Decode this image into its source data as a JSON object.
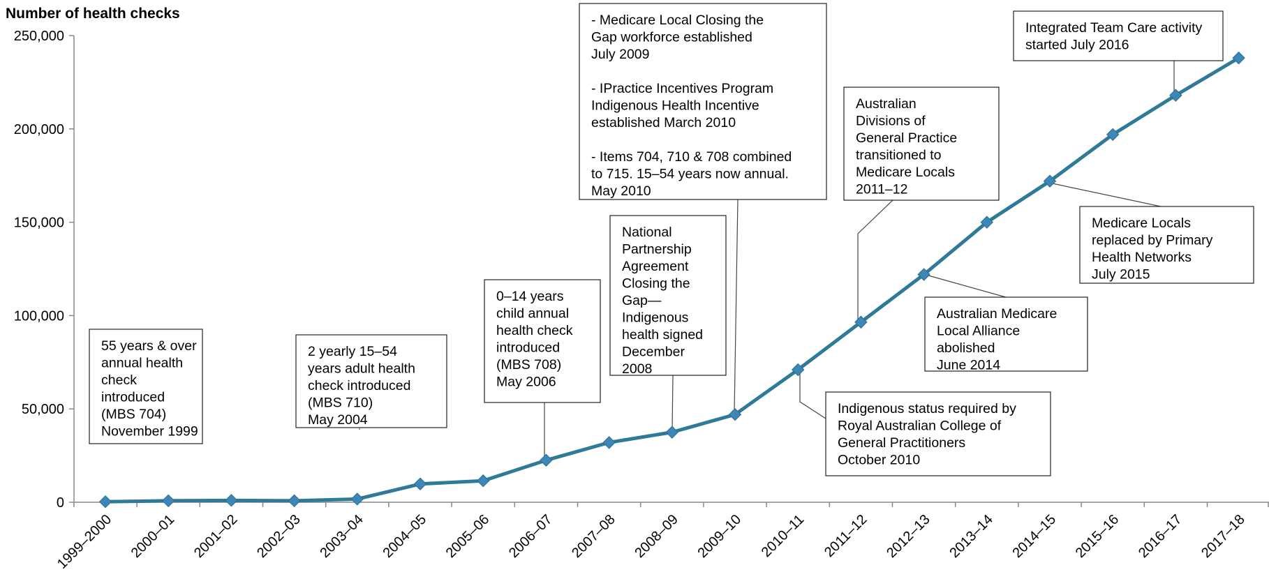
{
  "chart_data": {
    "type": "line",
    "ylabel": "Number of health checks",
    "xlabel": "",
    "ylim": [
      0,
      250000
    ],
    "yticks": [
      0,
      50000,
      100000,
      150000,
      200000,
      250000
    ],
    "ytick_labels": [
      "0",
      "50,000",
      "100,000",
      "150,000",
      "200,000",
      "250,000"
    ],
    "grid": false,
    "legend": "none",
    "line_color": "#2f7a96",
    "marker_color": "#3d86b8",
    "categories": [
      "1999–2000",
      "2000–01",
      "2001–02",
      "2002–03",
      "2003–04",
      "2004–05",
      "2005–06",
      "2006–07",
      "2007–08",
      "2008–09",
      "2009–10",
      "2010–11",
      "2011–12",
      "2012–13",
      "2013–14",
      "2014–15",
      "2015–16",
      "2016–17",
      "2017–18"
    ],
    "values": [
      300,
      800,
      1000,
      800,
      1700,
      9800,
      11500,
      22500,
      32000,
      37500,
      47000,
      71000,
      96500,
      122000,
      150000,
      172000,
      197000,
      218000,
      238000
    ],
    "annotations": [
      {
        "point_index": 0,
        "lines": [
          "55 years & over",
          "annual health",
          "check",
          "introduced",
          "(MBS 704)",
          "November  1999"
        ]
      },
      {
        "point_index": 4,
        "lines": [
          "2 yearly 15–54",
          "years adult health",
          "check introduced",
          "(MBS 710)",
          "May 2004"
        ]
      },
      {
        "point_index": 7,
        "lines": [
          "0–14 years",
          "child annual",
          "health check",
          "introduced",
          "(MBS 708)",
          "May 2006"
        ]
      },
      {
        "point_index": 9,
        "lines": [
          "National",
          "Partnership",
          "Agreement",
          "Closing the",
          "Gap—",
          "Indigenous",
          "health signed",
          "December",
          "2008"
        ]
      },
      {
        "point_index": 10,
        "lines": [
          "- Medicare Local Closing the",
          "Gap workforce established",
          "July 2009",
          "",
          " - IPractice Incentives Program",
          "Indigenous Health Incentive",
          "established March 2010",
          "",
          "- Items 704, 710 & 708 combined",
          "to 715. 15–54 years now annual.",
          "May 2010"
        ]
      },
      {
        "point_index": 11,
        "lines": [
          "Indigenous status required by",
          "Royal Australian College of",
          "General Practitioners",
          "October 2010"
        ]
      },
      {
        "point_index": 12,
        "lines": [
          "Australian",
          "Divisions of",
          "General Practice",
          "transitioned to",
          "Medicare Locals",
          "2011–12"
        ]
      },
      {
        "point_index": 13,
        "lines": [
          "Australian Medicare",
          "Local Alliance",
          "abolished",
          "June 2014"
        ]
      },
      {
        "point_index": 15,
        "lines": [
          "Medicare Locals",
          "replaced by Primary",
          "Health  Networks",
          "July 2015"
        ]
      },
      {
        "point_index": 17,
        "lines": [
          "Integrated Team Care activity",
          "started July 2016"
        ]
      }
    ]
  }
}
